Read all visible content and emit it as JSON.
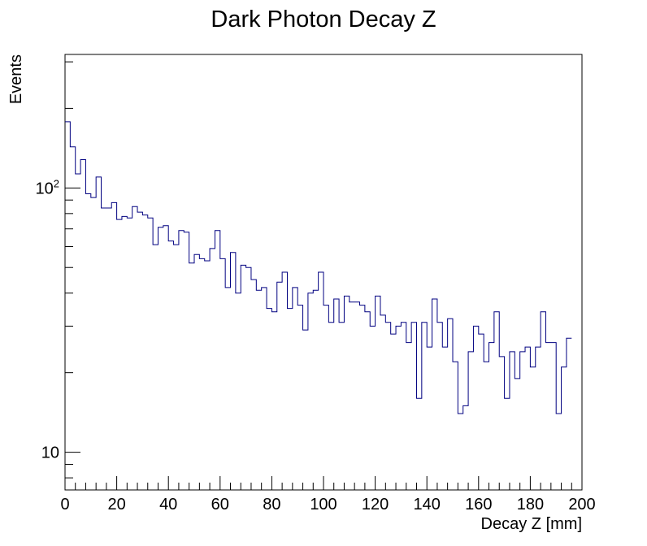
{
  "chart_data": {
    "type": "histogram",
    "title": "Dark Photon Decay Z",
    "xlabel": "Decay Z [mm]",
    "ylabel": "Events",
    "xlim": [
      0,
      200
    ],
    "ylim": [
      7.2,
      320
    ],
    "yscale": "log",
    "line_color": "#000080",
    "x_ticks": [
      0,
      20,
      40,
      60,
      80,
      100,
      120,
      140,
      160,
      180,
      200
    ],
    "x_tick_labels": [
      "0",
      "20",
      "40",
      "60",
      "80",
      "100",
      "120",
      "140",
      "160",
      "180",
      "200"
    ],
    "y_tick_labels": [
      {
        "value": 10,
        "base": "10",
        "exp": ""
      },
      {
        "value": 100,
        "base": "10",
        "exp": "2"
      }
    ],
    "bin_width": 2,
    "values": [
      178,
      143,
      113,
      128,
      95,
      92,
      110,
      84,
      84,
      88,
      76,
      78,
      77,
      85,
      81,
      79,
      77,
      61,
      71,
      72,
      63,
      61,
      69,
      68,
      52,
      56,
      54,
      53,
      59,
      69,
      54,
      42,
      57,
      40,
      51,
      50,
      45,
      41,
      42,
      35,
      34,
      44,
      48,
      35,
      42,
      36,
      29,
      40,
      41,
      48,
      36,
      31,
      38,
      31,
      39,
      37,
      37,
      36,
      34,
      30,
      39,
      33,
      31,
      28,
      30,
      31,
      26,
      31,
      16,
      31,
      25,
      38,
      31,
      25,
      32,
      22,
      14,
      15,
      24,
      30,
      28,
      22,
      26,
      34,
      23,
      16,
      24,
      19,
      24,
      25,
      21,
      25,
      34,
      26,
      26,
      14,
      21,
      27
    ]
  }
}
